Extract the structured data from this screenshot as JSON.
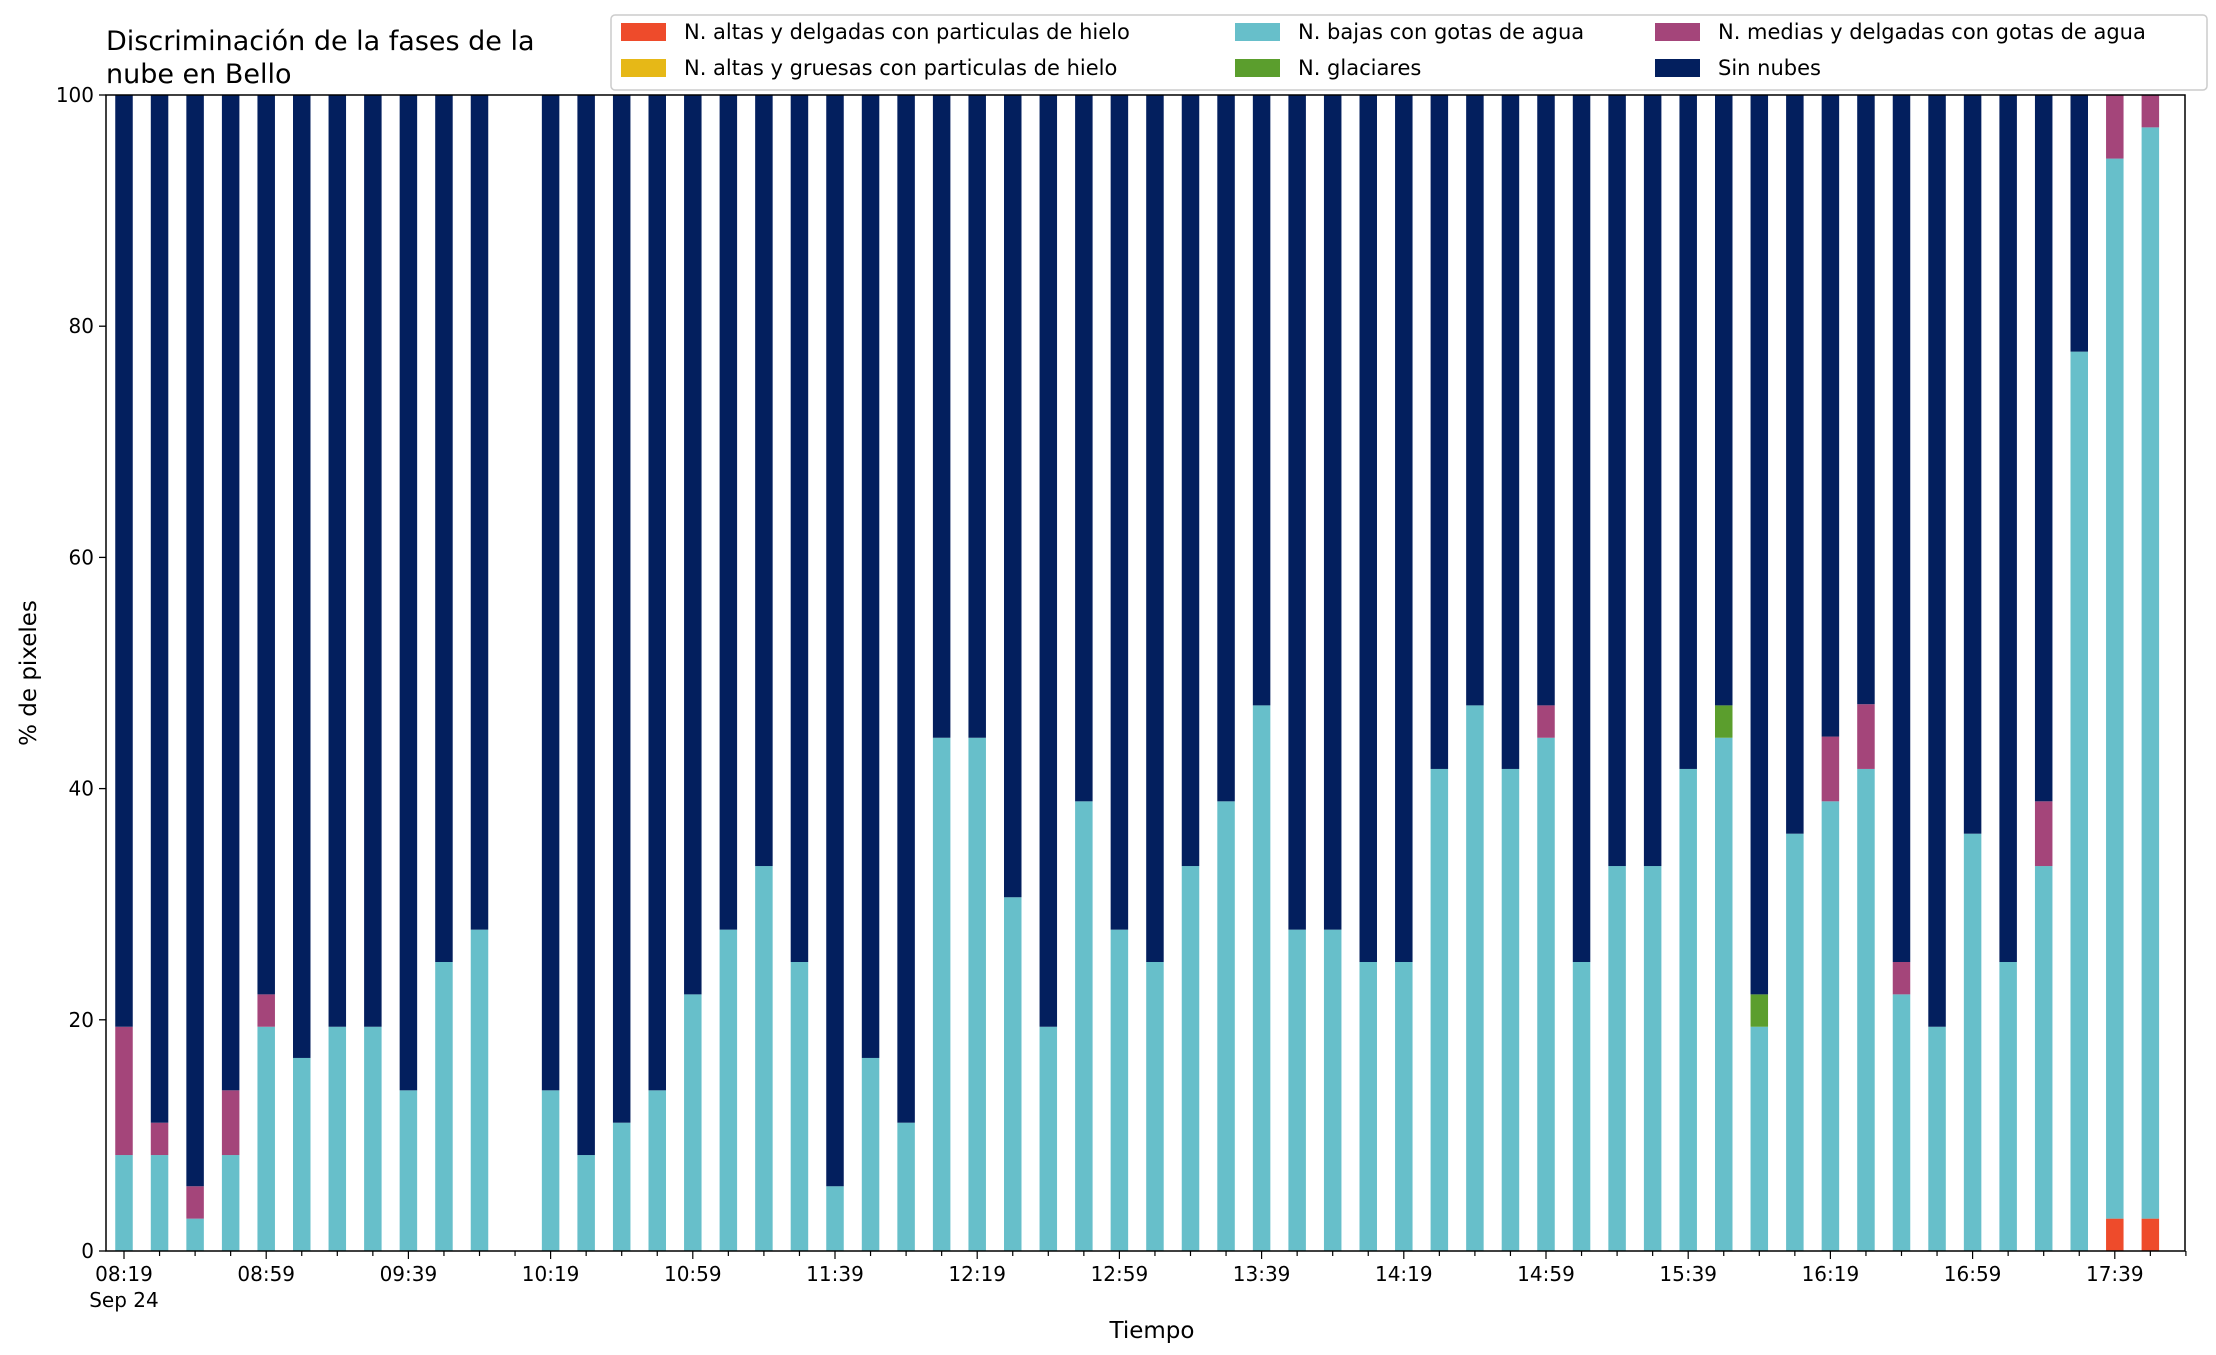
{
  "chart_data": {
    "type": "bar",
    "stacked": true,
    "title_lines": [
      "Discriminación de la fases de la",
      "nube en Bello"
    ],
    "xlabel": "Tiempo",
    "ylabel": "% de pixeles",
    "ylim": [
      0,
      100
    ],
    "yticks": [
      0,
      20,
      40,
      60,
      80,
      100
    ],
    "xtick_labels": [
      "08:19",
      "08:59",
      "09:39",
      "10:19",
      "10:59",
      "11:39",
      "12:19",
      "12:59",
      "13:39",
      "14:19",
      "14:59",
      "15:39",
      "16:19",
      "16:59",
      "17:39"
    ],
    "xtick_sublabel": "Sep 24",
    "grid": false,
    "legend_position": "top",
    "x_start": "08:19",
    "x_step_minutes": 10,
    "categories": [
      "08:19",
      "08:29",
      "08:39",
      "08:49",
      "08:59",
      "09:09",
      "09:19",
      "09:29",
      "09:39",
      "09:49",
      "09:59",
      "10:09",
      "10:19",
      "10:29",
      "10:39",
      "10:49",
      "10:59",
      "11:09",
      "11:19",
      "11:29",
      "11:39",
      "11:49",
      "11:59",
      "12:09",
      "12:19",
      "12:29",
      "12:39",
      "12:49",
      "12:59",
      "13:09",
      "13:19",
      "13:29",
      "13:39",
      "13:49",
      "13:59",
      "14:09",
      "14:19",
      "14:29",
      "14:39",
      "14:49",
      "14:59",
      "15:09",
      "15:19",
      "15:29",
      "15:39",
      "15:49",
      "15:59",
      "16:09",
      "16:19",
      "16:29",
      "16:39",
      "16:49",
      "16:59",
      "17:09",
      "17:19",
      "17:29",
      "17:39",
      "17:49"
    ],
    "series": [
      {
        "name": "N. altas y delgadas con particulas de hielo",
        "color": "#ee4b2b",
        "values": [
          0,
          0,
          0,
          0,
          0,
          0,
          0,
          0,
          0,
          0,
          0,
          null,
          0,
          0,
          0,
          0,
          0,
          0,
          0,
          0,
          0,
          0,
          0,
          0,
          0,
          0,
          0,
          0,
          0,
          0,
          0,
          0,
          0,
          0,
          0,
          0,
          0,
          0,
          0,
          0,
          0,
          0,
          0,
          0,
          0,
          0,
          0,
          0,
          0,
          0,
          0,
          0,
          0,
          0,
          0,
          0,
          2.8,
          2.8
        ]
      },
      {
        "name": "N. altas y gruesas con particulas de hielo",
        "color": "#e6b817",
        "values": [
          0,
          0,
          0,
          0,
          0,
          0,
          0,
          0,
          0,
          0,
          0,
          null,
          0,
          0,
          0,
          0,
          0,
          0,
          0,
          0,
          0,
          0,
          0,
          0,
          0,
          0,
          0,
          0,
          0,
          0,
          0,
          0,
          0,
          0,
          0,
          0,
          0,
          0,
          0,
          0,
          0,
          0,
          0,
          0,
          0,
          0,
          0,
          0,
          0,
          0,
          0,
          0,
          0,
          0,
          0,
          0,
          0,
          0
        ]
      },
      {
        "name": "N. bajas con gotas de agua",
        "color": "#67bfca",
        "values": [
          8.3,
          8.3,
          2.8,
          8.3,
          19.4,
          16.7,
          19.4,
          19.4,
          13.9,
          25.0,
          27.8,
          null,
          13.9,
          8.3,
          11.1,
          13.9,
          22.2,
          27.8,
          33.3,
          25.0,
          5.6,
          16.7,
          11.1,
          44.4,
          44.4,
          30.6,
          19.4,
          38.9,
          27.8,
          25.0,
          33.3,
          38.9,
          47.2,
          27.8,
          27.8,
          25.0,
          25.0,
          41.7,
          47.2,
          41.7,
          44.4,
          25.0,
          33.3,
          33.3,
          41.7,
          44.4,
          19.4,
          36.1,
          38.9,
          41.7,
          22.2,
          19.4,
          36.1,
          25.0,
          33.3,
          77.8,
          91.7,
          94.4
        ]
      },
      {
        "name": "N. glaciares",
        "color": "#5b9e2d",
        "values": [
          0,
          0,
          0,
          0,
          0,
          0,
          0,
          0,
          0,
          0,
          0,
          null,
          0,
          0,
          0,
          0,
          0,
          0,
          0,
          0,
          0,
          0,
          0,
          0,
          0,
          0,
          0,
          0,
          0,
          0,
          0,
          0,
          0,
          0,
          0,
          0,
          0,
          0,
          0,
          0,
          0,
          0,
          0,
          0,
          0,
          2.8,
          2.8,
          0,
          0,
          0,
          0,
          0,
          0,
          0,
          0,
          0,
          0,
          0
        ]
      },
      {
        "name": "N. medias y delgadas con gotas de agua",
        "color": "#a4457a",
        "values": [
          11.1,
          2.8,
          2.8,
          5.6,
          2.8,
          0,
          0,
          0,
          0,
          0,
          0,
          null,
          0,
          0,
          0,
          0,
          0,
          0,
          0,
          0,
          0,
          0,
          0,
          0,
          0,
          0,
          0,
          0,
          0,
          0,
          0,
          0,
          0,
          0,
          0,
          0,
          0,
          0,
          0,
          0,
          2.8,
          0,
          0,
          0,
          0,
          0,
          0,
          0,
          5.6,
          5.6,
          2.8,
          0,
          0,
          0,
          5.6,
          0,
          5.5,
          2.8
        ]
      },
      {
        "name": "Sin nubes",
        "color": "#031f5e",
        "values": [
          80.6,
          88.9,
          94.4,
          86.1,
          77.8,
          83.3,
          80.6,
          80.6,
          86.1,
          75.0,
          72.2,
          null,
          86.1,
          91.7,
          88.9,
          86.1,
          77.8,
          72.2,
          66.7,
          75.0,
          94.4,
          83.3,
          88.9,
          55.6,
          55.6,
          69.4,
          80.6,
          61.1,
          72.2,
          75.0,
          66.7,
          61.1,
          52.8,
          72.2,
          72.2,
          75.0,
          75.0,
          58.3,
          52.8,
          58.3,
          52.8,
          75.0,
          66.7,
          66.7,
          58.3,
          52.8,
          77.8,
          63.9,
          55.5,
          52.7,
          75.0,
          80.6,
          63.9,
          75.0,
          61.1,
          22.2,
          0,
          0
        ]
      }
    ],
    "legend_entries": [
      "N. altas y delgadas con particulas de hielo",
      "N. bajas con gotas de agua",
      "N. medias y delgadas con gotas de agua",
      "N. altas y gruesas con particulas de hielo",
      "N. glaciares",
      "Sin nubes"
    ]
  }
}
